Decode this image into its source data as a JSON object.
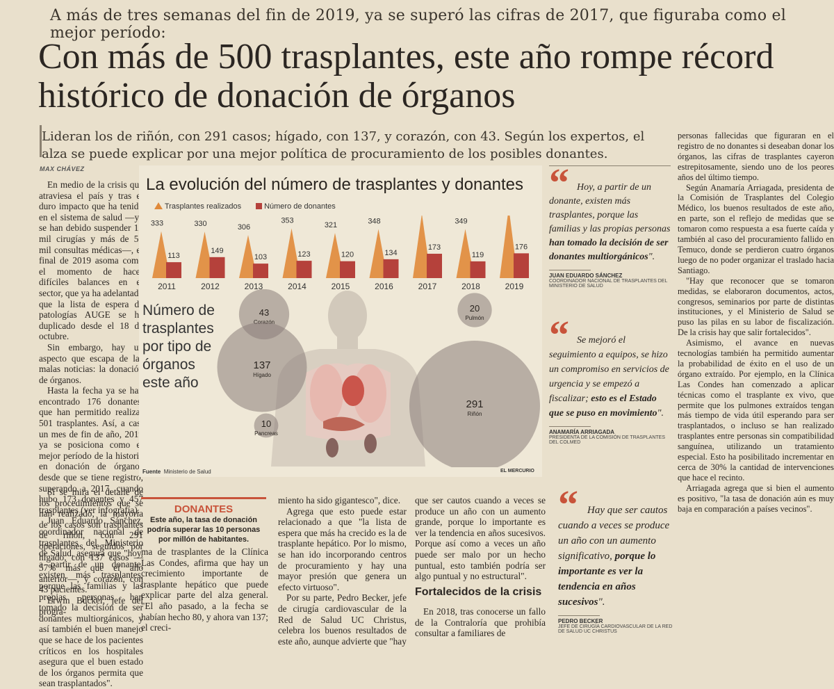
{
  "kicker": "A más de tres semanas del fin de 2019, ya se superó las cifras de 2017, que figuraba como el mejor período:",
  "headline": "Con más de 500 trasplantes, este año rompe récord histórico de donación de órganos",
  "dek": "Lideran los de riñón, con 291 casos; hígado, con 137, y corazón, con 43. Según los expertos, el alza se puede explicar por una mejor política de procuramiento de los posibles donantes.",
  "byline": "MAX CHÁVEZ",
  "column1": [
    "En medio de la crisis que atraviesa el país y tras el duro impacto que ha tenido en el sistema de salud —ya se han debido suspender 12 mil cirugías y más de 50 mil consultas médicas—, el final de 2019 asoma como el momento de hacer difíciles balances en el sector, que ya ha adelantado que la lista de espera de patologías AUGE se ha duplicado desde el 18 de octubre.",
    "Sin embargo, hay un aspecto que escapa de las malas noticias: la donación de órganos.",
    "Hasta la fecha ya se han encontrado 176 donantes, que han permitido realizar 501 trasplantes. Así, a casi un mes de fin de año, 2019 ya se posiciona como el mejor período de la historia en donación de órganos desde que se tiene registro, superando a 2017, cuando hubo 173 donantes y 457 trasplantes (ver infografía).",
    "Juan Eduardo Sánchez, coordinador nacional de trasplantes del Ministerio de Salud, asegura que \"hoy, a partir de un donante, existen más trasplantes, porque las familias y las propias personas han tomado la decisión de ser donantes multiorgánicos, y así también el buen manejo que se hace de los pacientes críticos en los hospitales asegura que el buen estado de los órganos permita que sean trasplantados\".",
    "Si se mira el detalle de los procedimientos que se han realizado, la mayoría de los casos son trasplantes de riñón, con 291 operaciones, seguidos por hígado, con 137 casos —57% más que el año anterior—, y corazón, con 43 pacientes.",
    "Erwin Buckel, jefe del progra-"
  ],
  "graphic": {
    "title": "La evolución del número de trasplantes y donantes",
    "legend_transplants": "Trasplantes realizados",
    "legend_donors": "Número de donantes",
    "organ_title": "Número de trasplantes por tipo de órganos este año",
    "source_label": "Fuente",
    "source": "Ministerio de Salud",
    "credit": "EL MERCURIO",
    "color_transplants": "#e0893a",
    "color_donors": "#b5413b"
  },
  "chart_data": [
    {
      "type": "bar",
      "categories": [
        "2011",
        "2012",
        "2013",
        "2014",
        "2015",
        "2016",
        "2017",
        "2018",
        "2019"
      ],
      "series": [
        {
          "name": "Trasplantes realizados",
          "values": [
            333,
            330,
            306,
            353,
            321,
            348,
            457,
            349,
            501
          ]
        },
        {
          "name": "Número de donantes",
          "values": [
            113,
            149,
            103,
            123,
            120,
            134,
            173,
            119,
            176
          ]
        }
      ],
      "title": "La evolución del número de trasplantes y donantes"
    },
    {
      "type": "bubble",
      "title": "Número de trasplantes por tipo de órganos este año",
      "categories": [
        "Corazón",
        "Hígado",
        "Pancreas",
        "Pulmón",
        "Riñón"
      ],
      "values": [
        43,
        137,
        10,
        20,
        291
      ]
    }
  ],
  "donantes_box": {
    "heading": "DONANTES",
    "text": "Este año, la tasa de donación podría superar las 10 personas por millón de habitantes."
  },
  "col2a": "ma de trasplantes de la Clínica Las Condes, afirma que hay un crecimiento importante de trasplante hepático que puede explicar parte del alza general. \"El año pasado, a la fecha se habían hecho 80, y ahora van 137; el creci-",
  "col3": [
    "miento ha sido gigantesco\", dice.",
    "Agrega que esto puede estar relacionado a que \"la lista de espera que más ha crecido es la de trasplante hepático. Por lo mismo, se han ido incorporando centros de procuramiento y hay una mayor presión que genera un efecto virtuoso\".",
    "Por su parte, Pedro Becker, jefe de cirugía cardiovascular de la Red de Salud UC Christus, celebra los buenos resultados de este año, aunque advierte que \"hay"
  ],
  "col4": [
    "que ser cautos cuando a veces se produce un año con un aumento grande, porque lo importante es ver la tendencia en años sucesivos. Porque así como a veces un año puede ser malo por un hecho puntual, esto también podría ser algo puntual y no estructural\"."
  ],
  "subhead": "Fortalecidos de la crisis",
  "col4b": "En 2018, tras conocerse un fallo de la Contraloría que prohibía consultar a familiares de",
  "quotes": [
    {
      "text_a": "Hoy, a partir de un donante, existen más trasplantes, porque las familias y las propias personas ",
      "text_b": "han tomado la decisión de ser donantes multiorgánicos",
      "text_c": "\".",
      "name": "JUAN EDUARDO SÁNCHEZ",
      "role": "COORDINADOR NACIONAL DE TRASPLANTES DEL MINISTERIO DE SALUD"
    },
    {
      "text_a": "Se mejoró el seguimiento a equipos, se hizo un compromiso en servicios de urgencia y se empezó a fiscalizar; ",
      "text_b": "esto es el Estado que se puso en movimiento",
      "text_c": "\".",
      "name": "ANAMARÍA ARRIAGADA",
      "role": "PRESIDENTA DE LA COMISIÓN DE TRASPLANTES DEL COLMED"
    },
    {
      "text_a": "Hay que ser cautos cuando a veces se produce un año con un aumento significativo, ",
      "text_b": "porque lo importante es ver la tendencia en años sucesivos",
      "text_c": "\".",
      "name": "PEDRO BECKER",
      "role": "JEFE DE CIRUGÍA CARDIOVASCULAR DE LA RED DE SALUD UC CHRISTUS"
    }
  ],
  "column_right": [
    "personas fallecidas que figuraran en el registro de no donantes si deseaban donar los órganos, las cifras de trasplantes cayeron estrepitosamente, siendo uno de los peores años del último tiempo.",
    "Según Anamaría Arriagada, presidenta de la Comisión de Trasplantes del Colegio Médico, los buenos resultados de este año, en parte, son el reflejo de medidas que se tomaron como respuesta a esa fuerte caída y también al caso del procuramiento fallido en Temuco, donde se perdieron cuatro órganos luego de no poder organizar el traslado hacia Santiago.",
    "\"Hay que reconocer que se tomaron medidas, se elaboraron documentos, actos, congresos, seminarios por parte de distintas instituciones, y el Ministerio de Salud se puso las pilas en su labor de fiscalización. De la crisis hay que salir fortalecidos\".",
    "Asimismo, el avance en nuevas tecnologías también ha permitido aumentar la probabilidad de éxito en el uso de un órgano extraído. Por ejemplo, en la Clínica Las Condes han comenzado a aplicar técnicas como el trasplante ex vivo, que permite que los pulmones extraídos tengan más tiempo de vida útil esperando para ser trasplantados, o incluso se han realizado trasplantes entre personas sin compatibilidad sanguínea, utilizando un tratamiento especial. Esto ha posibilitado incrementar en cerca de 30% la cantidad de intervenciones que hace el recinto.",
    "Arriagada agrega que si bien el aumento es positivo, \"la tasa de donación aún es muy baja en comparación a países vecinos\"."
  ]
}
